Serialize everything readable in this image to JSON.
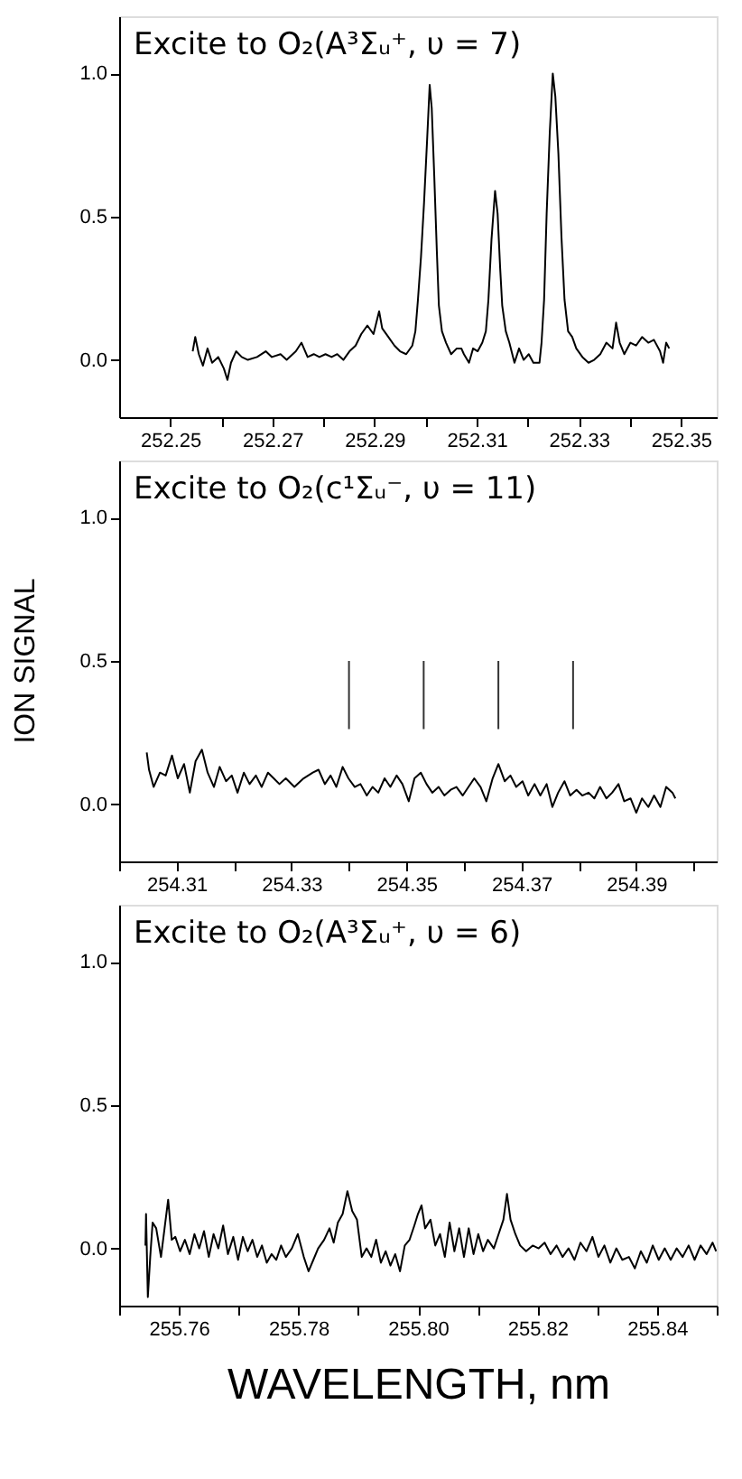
{
  "chart_data": [
    {
      "type": "line",
      "annotations": [
        "Excite to O₂(A³Σᵤ⁺, υ = 7)"
      ],
      "xlim": [
        252.24,
        252.357
      ],
      "ylim": [
        -0.2,
        1.2
      ],
      "xticks": [
        252.25,
        {
          "value": 252.26,
          "label": null
        },
        252.27,
        {
          "value": 252.28,
          "label": null
        },
        252.29,
        {
          "value": 252.3,
          "label": null
        },
        252.31,
        {
          "value": 252.32,
          "label": null
        },
        252.33,
        {
          "value": 252.34,
          "label": null
        },
        252.35
      ],
      "yticks": [
        {
          "value": 0,
          "label": "0.0"
        },
        {
          "value": 0.5,
          "label": "0.5"
        },
        {
          "value": 1.0,
          "label": "1.0"
        }
      ],
      "x": [
        252.2544,
        252.2549,
        252.2556,
        252.2564,
        252.2573,
        252.2582,
        252.2594,
        252.2605,
        252.2612,
        252.2619,
        252.2629,
        252.264,
        252.2652,
        252.267,
        252.2687,
        252.2699,
        252.2716,
        252.2728,
        252.2746,
        252.2757,
        252.2769,
        252.2781,
        252.2792,
        252.2804,
        252.2816,
        252.2827,
        252.2839,
        252.2851,
        252.2863,
        252.2874,
        252.2886,
        252.2898,
        252.2909,
        252.2915,
        252.2927,
        252.2939,
        252.295,
        252.2962,
        252.2974,
        252.298,
        252.2985,
        252.2991,
        252.2997,
        252.3003,
        252.3008,
        252.3012,
        252.3017,
        252.3022,
        252.3026,
        252.3032,
        252.304,
        252.305,
        252.3061,
        252.307,
        252.3075,
        252.3085,
        252.3093,
        252.3102,
        252.3111,
        252.3118,
        252.3123,
        252.3129,
        252.3136,
        252.3141,
        252.3146,
        252.315,
        252.3157,
        252.3164,
        252.3174,
        252.3183,
        252.3192,
        252.3202,
        252.3211,
        252.3223,
        252.3227,
        252.3232,
        252.3237,
        252.3243,
        252.3249,
        252.3254,
        252.326,
        252.3266,
        252.3272,
        252.3279,
        252.3287,
        252.3295,
        252.3307,
        252.3319,
        252.333,
        252.3342,
        252.3354,
        252.3366,
        252.3373,
        252.338,
        252.3389,
        252.3401,
        252.3412,
        252.3424,
        252.3436,
        252.3447,
        252.3459,
        252.3465,
        252.3471,
        252.3477
      ],
      "series": [
        {
          "color": "#000000",
          "values": [
            0.03,
            0.08,
            0.02,
            -0.02,
            0.04,
            -0.01,
            0.01,
            -0.03,
            -0.07,
            -0.01,
            0.03,
            0.01,
            0.0,
            0.01,
            0.03,
            0.01,
            0.02,
            0.0,
            0.03,
            0.06,
            0.01,
            0.02,
            0.01,
            0.02,
            0.01,
            0.02,
            0.0,
            0.03,
            0.05,
            0.09,
            0.12,
            0.09,
            0.17,
            0.11,
            0.08,
            0.05,
            0.03,
            0.02,
            0.05,
            0.1,
            0.21,
            0.36,
            0.55,
            0.77,
            0.96,
            0.88,
            0.64,
            0.38,
            0.19,
            0.1,
            0.06,
            0.02,
            0.04,
            0.04,
            0.02,
            -0.01,
            0.04,
            0.03,
            0.06,
            0.1,
            0.21,
            0.42,
            0.59,
            0.51,
            0.32,
            0.19,
            0.1,
            0.06,
            -0.01,
            0.04,
            0.0,
            0.02,
            -0.01,
            -0.01,
            0.06,
            0.21,
            0.51,
            0.79,
            1.0,
            0.92,
            0.72,
            0.43,
            0.21,
            0.1,
            0.08,
            0.04,
            0.01,
            -0.01,
            0.0,
            0.02,
            0.06,
            0.04,
            0.13,
            0.06,
            0.02,
            0.06,
            0.05,
            0.08,
            0.06,
            0.07,
            0.03,
            -0.01,
            0.06,
            0.04
          ]
        }
      ]
    },
    {
      "type": "line",
      "annotations": [
        "Excite to O₂(c¹Σᵤ⁻, υ = 11)"
      ],
      "ylabel": "ION SIGNAL",
      "xlim": [
        254.3,
        254.404
      ],
      "ylim": [
        -0.2,
        1.2
      ],
      "xticks": [
        {
          "value": 254.3,
          "label": null
        },
        254.31,
        {
          "value": 254.32,
          "label": null
        },
        254.33,
        {
          "value": 254.34,
          "label": null
        },
        254.35,
        {
          "value": 254.36,
          "label": null
        },
        254.37,
        {
          "value": 254.38,
          "label": null
        },
        254.39,
        {
          "value": 254.4,
          "label": null
        }
      ],
      "yticks": [
        {
          "value": 0,
          "label": "0.0"
        },
        {
          "value": 0.5,
          "label": "0.5"
        },
        {
          "value": 1.0,
          "label": "1.0"
        }
      ],
      "ref_lines": [
        {
          "axis": "x",
          "value": 254.34,
          "color": "#333333"
        },
        {
          "axis": "x",
          "value": 254.353,
          "color": "#333333"
        },
        {
          "axis": "x",
          "value": 254.366,
          "color": "#333333"
        },
        {
          "axis": "x",
          "value": 254.379,
          "color": "#333333"
        }
      ],
      "x": [
        254.3048,
        254.3052,
        254.306,
        254.3071,
        254.3081,
        254.3092,
        254.3102,
        254.3113,
        254.3123,
        254.3133,
        254.3144,
        254.3154,
        254.3165,
        254.3175,
        254.3186,
        254.3196,
        254.3206,
        254.3217,
        254.3227,
        254.3238,
        254.3248,
        254.3259,
        254.3269,
        254.3279,
        254.329,
        254.3305,
        254.3321,
        254.3337,
        254.3347,
        254.3358,
        254.3368,
        254.3378,
        254.3389,
        254.3399,
        254.341,
        254.342,
        254.3431,
        254.3441,
        254.3451,
        254.3462,
        254.3472,
        254.3483,
        254.3493,
        254.3504,
        254.3514,
        254.3525,
        254.3535,
        254.3545,
        254.3556,
        254.3566,
        254.3577,
        254.3587,
        254.3598,
        254.3608,
        254.3618,
        254.3629,
        254.3639,
        254.365,
        254.366,
        254.3671,
        254.3681,
        254.3691,
        254.3702,
        254.3712,
        254.3723,
        254.3733,
        254.3744,
        254.3754,
        254.3764,
        254.3775,
        254.3785,
        254.3796,
        254.3806,
        254.3817,
        254.3827,
        254.3837,
        254.3848,
        254.3858,
        254.3869,
        254.3879,
        254.389,
        254.39,
        254.391,
        254.3921,
        254.3931,
        254.3942,
        254.3952,
        254.3963,
        254.3968
      ],
      "series": [
        {
          "color": "#000000",
          "values": [
            0.18,
            0.12,
            0.06,
            0.11,
            0.1,
            0.17,
            0.09,
            0.14,
            0.04,
            0.15,
            0.19,
            0.11,
            0.06,
            0.13,
            0.08,
            0.1,
            0.04,
            0.11,
            0.07,
            0.1,
            0.06,
            0.11,
            0.09,
            0.07,
            0.09,
            0.06,
            0.09,
            0.11,
            0.12,
            0.07,
            0.1,
            0.06,
            0.13,
            0.09,
            0.06,
            0.07,
            0.03,
            0.06,
            0.04,
            0.09,
            0.06,
            0.1,
            0.07,
            0.01,
            0.09,
            0.11,
            0.07,
            0.04,
            0.06,
            0.03,
            0.05,
            0.06,
            0.03,
            0.06,
            0.09,
            0.06,
            0.01,
            0.09,
            0.14,
            0.08,
            0.1,
            0.06,
            0.08,
            0.03,
            0.07,
            0.03,
            0.07,
            -0.01,
            0.04,
            0.08,
            0.03,
            0.05,
            0.03,
            0.04,
            0.02,
            0.06,
            0.02,
            0.04,
            0.07,
            0.01,
            0.02,
            -0.03,
            0.02,
            -0.01,
            0.03,
            -0.01,
            0.06,
            0.04,
            0.02
          ]
        }
      ]
    },
    {
      "type": "line",
      "annotations": [
        "Excite to O₂(A³Σᵤ⁺, υ = 6)"
      ],
      "xlabel": "WAVELENGTH, nm",
      "xlim": [
        255.75,
        255.85
      ],
      "ylim": [
        -0.2,
        1.2
      ],
      "xticks": [
        {
          "value": 255.75,
          "label": null
        },
        255.76,
        {
          "value": 255.77,
          "label": null
        },
        255.78,
        {
          "value": 255.79,
          "label": null
        },
        {
          "value": 255.8,
          "label": "255.80"
        },
        {
          "value": 255.81,
          "label": null
        },
        255.82,
        {
          "value": 255.83,
          "label": null
        },
        255.84,
        {
          "value": 255.85,
          "label": null
        }
      ],
      "yticks": [
        {
          "value": 0,
          "label": "0.0"
        },
        {
          "value": 0.5,
          "label": "0.5"
        },
        {
          "value": 1.0,
          "label": "1.0"
        }
      ],
      "x": [
        255.7544,
        255.7545,
        255.7548,
        255.7552,
        255.7556,
        255.7562,
        255.757,
        255.7576,
        255.7582,
        255.7588,
        255.7594,
        255.7602,
        255.761,
        255.7618,
        255.7626,
        255.7634,
        255.7642,
        255.765,
        255.7658,
        255.7666,
        255.7674,
        255.7682,
        255.7691,
        255.7699,
        255.7707,
        255.7715,
        255.7723,
        255.7731,
        255.7739,
        255.7747,
        255.7755,
        255.7763,
        255.7771,
        255.7779,
        255.7789,
        255.7799,
        255.7809,
        255.7817,
        255.7825,
        255.7833,
        255.7843,
        255.7852,
        255.7859,
        255.7866,
        255.7874,
        255.7882,
        255.789,
        255.7898,
        255.7906,
        255.7914,
        255.7922,
        255.793,
        255.7938,
        255.7946,
        255.7954,
        255.7962,
        255.797,
        255.7978,
        255.7986,
        255.7994,
        255.8,
        255.8006,
        255.8012,
        255.8021,
        255.8029,
        255.8037,
        255.8045,
        255.8053,
        255.8061,
        255.8069,
        255.8077,
        255.8085,
        255.8093,
        255.8101,
        255.8109,
        255.8117,
        255.8127,
        255.8135,
        255.8143,
        255.8149,
        255.8155,
        255.8163,
        255.8171,
        255.8181,
        255.8192,
        255.8202,
        255.8212,
        255.8222,
        255.8232,
        255.8242,
        255.8252,
        255.8262,
        255.8272,
        255.8282,
        255.8292,
        255.8302,
        255.8312,
        255.8322,
        255.8332,
        255.8342,
        255.8353,
        255.8363,
        255.8373,
        255.8383,
        255.8393,
        255.8403,
        255.8413,
        255.8423,
        255.8433,
        255.8443,
        255.8453,
        255.8463,
        255.8473,
        255.8483,
        255.8493,
        255.8499
      ],
      "series": [
        {
          "color": "#000000",
          "values": [
            0.01,
            0.12,
            -0.17,
            -0.03,
            0.09,
            0.07,
            -0.03,
            0.07,
            0.17,
            0.03,
            0.04,
            -0.01,
            0.03,
            -0.02,
            0.05,
            0.0,
            0.06,
            -0.03,
            0.05,
            0.0,
            0.08,
            -0.02,
            0.04,
            -0.04,
            0.04,
            -0.01,
            0.03,
            -0.03,
            0.01,
            -0.05,
            -0.02,
            -0.04,
            0.01,
            -0.03,
            0.0,
            0.05,
            -0.03,
            -0.08,
            -0.04,
            0.0,
            0.03,
            0.07,
            0.02,
            0.09,
            0.12,
            0.2,
            0.13,
            0.1,
            -0.03,
            0.0,
            -0.03,
            0.03,
            -0.05,
            -0.01,
            -0.06,
            -0.02,
            -0.08,
            0.01,
            0.03,
            0.08,
            0.12,
            0.15,
            0.07,
            0.1,
            0.01,
            0.05,
            -0.03,
            0.09,
            -0.01,
            0.07,
            -0.03,
            0.07,
            -0.02,
            0.05,
            -0.01,
            0.03,
            0.0,
            0.05,
            0.1,
            0.19,
            0.1,
            0.05,
            0.01,
            -0.01,
            0.01,
            0.0,
            0.02,
            -0.02,
            0.01,
            -0.03,
            0.0,
            -0.04,
            0.02,
            -0.01,
            0.04,
            -0.03,
            0.01,
            -0.05,
            0.0,
            -0.04,
            -0.03,
            -0.07,
            -0.01,
            -0.05,
            0.01,
            -0.04,
            0.0,
            -0.04,
            0.0,
            -0.03,
            0.01,
            -0.04,
            0.01,
            -0.02,
            0.02,
            -0.01
          ]
        }
      ]
    }
  ]
}
